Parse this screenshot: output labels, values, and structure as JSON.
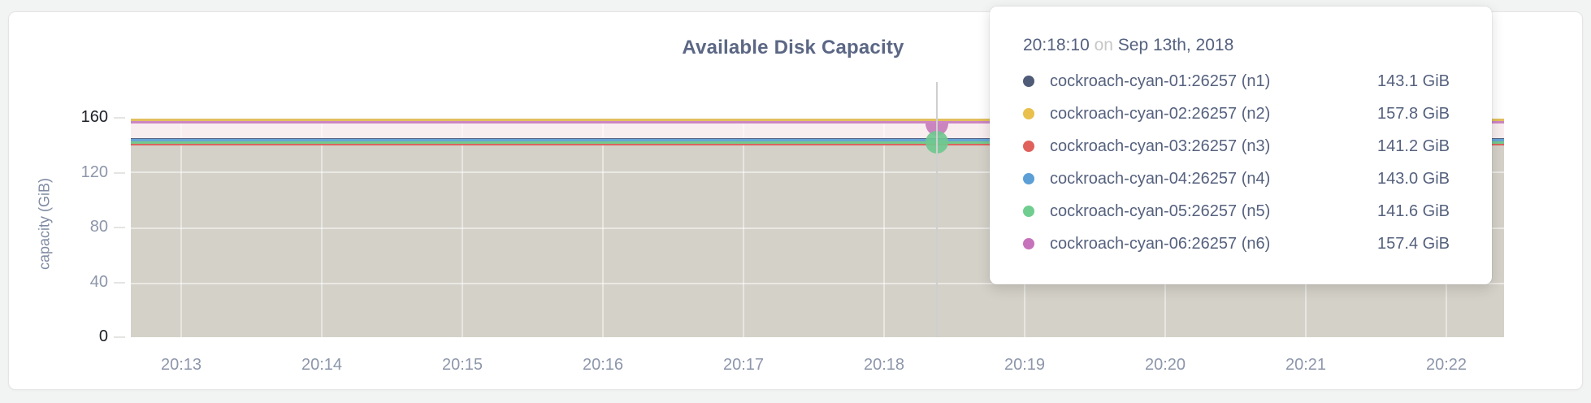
{
  "page": {
    "background": "#f2f3f3",
    "card_border": "#e4e4e4"
  },
  "chart": {
    "title": "Available Disk Capacity",
    "y_axis": {
      "title": "capacity (GiB)",
      "ticks": [
        "160",
        "120",
        "80",
        "40",
        "0"
      ]
    },
    "x_axis": {
      "ticks": [
        "20:13",
        "20:14",
        "20:15",
        "20:16",
        "20:17",
        "20:18",
        "20:19",
        "20:20",
        "20:21",
        "20:22"
      ]
    },
    "fills": {
      "upper_band": "#f8eeef",
      "lower_band": "#d4d1c8"
    },
    "hover_marker_colors": {
      "n6_half_dot": "#c67cbb",
      "n5_dot": "#6fc88f"
    }
  },
  "tooltip": {
    "time": "20:18:10",
    "on_word": "on",
    "date": "Sep 13th, 2018",
    "series": [
      {
        "label": "cockroach-cyan-01:26257 (n1)",
        "value": "143.1 GiB",
        "color": "#4f5b77",
        "line_color": "#5a6384"
      },
      {
        "label": "cockroach-cyan-02:26257 (n2)",
        "value": "157.8 GiB",
        "color": "#e8c04b",
        "line_color": "#e1bf5d"
      },
      {
        "label": "cockroach-cyan-03:26257 (n3)",
        "value": "141.2 GiB",
        "color": "#e0615c",
        "line_color": "#dc655f"
      },
      {
        "label": "cockroach-cyan-04:26257 (n4)",
        "value": "143.0 GiB",
        "color": "#5c9fd6",
        "line_color": "#65a3d6"
      },
      {
        "label": "cockroach-cyan-05:26257 (n5)",
        "value": "141.6 GiB",
        "color": "#70cd90",
        "line_color": "#76c88b"
      },
      {
        "label": "cockroach-cyan-06:26257 (n6)",
        "value": "157.4 GiB",
        "color": "#c673bb",
        "line_color": "#cd86c3"
      }
    ]
  },
  "chart_data": {
    "type": "area",
    "title": "Available Disk Capacity",
    "xlabel": "",
    "ylabel": "capacity (GiB)",
    "ylim": [
      0,
      160
    ],
    "y_ticks": [
      0,
      40,
      80,
      120,
      160
    ],
    "x_ticks": [
      "20:13",
      "20:14",
      "20:15",
      "20:16",
      "20:17",
      "20:18",
      "20:19",
      "20:20",
      "20:21",
      "20:22"
    ],
    "grid": true,
    "legend_position": "hover-tooltip",
    "hover_point": {
      "time": "20:18:10",
      "date": "Sep 13th, 2018"
    },
    "series": [
      {
        "name": "cockroach-cyan-01:26257 (n1)",
        "color": "#4f5b77",
        "value_gib": 143.1
      },
      {
        "name": "cockroach-cyan-02:26257 (n2)",
        "color": "#e8c04b",
        "value_gib": 157.8
      },
      {
        "name": "cockroach-cyan-03:26257 (n3)",
        "color": "#e0615c",
        "value_gib": 141.2
      },
      {
        "name": "cockroach-cyan-04:26257 (n4)",
        "color": "#5c9fd6",
        "value_gib": 143.0
      },
      {
        "name": "cockroach-cyan-05:26257 (n5)",
        "color": "#70cd90",
        "value_gib": 141.6
      },
      {
        "name": "cockroach-cyan-06:26257 (n6)",
        "color": "#c673bb",
        "value_gib": 157.4
      }
    ],
    "note": "All six series are essentially flat (constant) across the whole 20:13-20:22 window; series n2/n6 overlap near 157.5 GiB and n1/n3/n4/n5 overlap near 141-143 GiB."
  }
}
